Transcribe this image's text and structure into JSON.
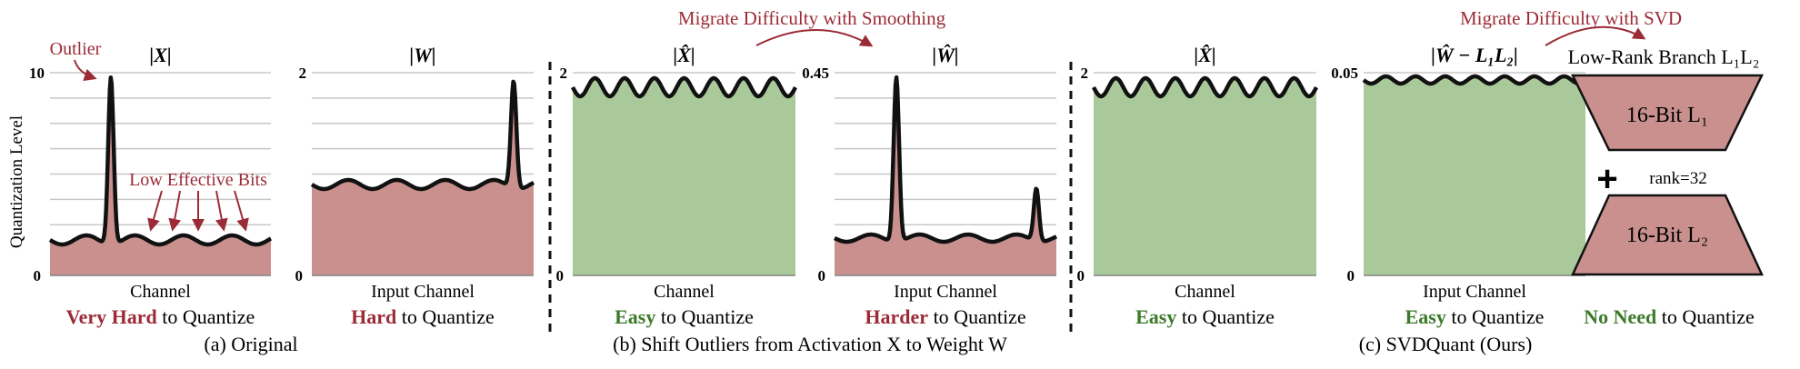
{
  "colors": {
    "red": "#c9908e",
    "green": "#a9c99b",
    "dark_red": "#9b2b36",
    "dark_green": "#3d7a2a",
    "curve": "#111111",
    "grid": "#c8c8c8"
  },
  "y_axis_label": "Quantization Level",
  "annotations": {
    "outlier": "Outlier",
    "low_bits": "Low Effective Bits",
    "migrate_smooth": "Migrate Difficulty with Smoothing",
    "migrate_svd": "Migrate Difficulty with SVD",
    "rank": "rank=32",
    "plus": "+"
  },
  "panels": [
    {
      "title": "|X|",
      "ymax": "10",
      "ymin": "0",
      "xlabel": "Channel",
      "verdict_strong": "Very Hard",
      "verdict_rest": " to Quantize",
      "verdict_color": "red",
      "fill": "red"
    },
    {
      "title": "|W|",
      "ymax": "2",
      "ymin": "0",
      "xlabel": "Input Channel",
      "verdict_strong": "Hard",
      "verdict_rest": " to Quantize",
      "verdict_color": "red",
      "fill": "red"
    },
    {
      "title": "|X̂|",
      "ymax": "2",
      "ymin": "0",
      "xlabel": "Channel",
      "verdict_strong": "Easy",
      "verdict_rest": " to Quantize",
      "verdict_color": "green",
      "fill": "green"
    },
    {
      "title": "|Ŵ|",
      "ymax": "0.45",
      "ymin": "0",
      "xlabel": "Input Channel",
      "verdict_strong": "Harder",
      "verdict_rest": " to Quantize",
      "verdict_color": "red",
      "fill": "red"
    },
    {
      "title": "|X̂|",
      "ymax": "2",
      "ymin": "0",
      "xlabel": "Channel",
      "verdict_strong": "Easy",
      "verdict_rest": " to Quantize",
      "verdict_color": "green",
      "fill": "green"
    },
    {
      "title": "|Ŵ − L₁L₂|",
      "ymax": "0.05",
      "ymin": "0",
      "xlabel": "Input Channel",
      "verdict_strong": "Easy",
      "verdict_rest": " to Quantize",
      "verdict_color": "green",
      "fill": "green"
    }
  ],
  "low_rank": {
    "title": "Low-Rank Branch L₁L₂",
    "l1_label": "16-Bit L₁",
    "l2_label": "16-Bit L₂",
    "verdict_strong": "No Need",
    "verdict_rest": " to Quantize"
  },
  "captions": [
    "(a) Original",
    "(b) Shift Outliers from Activation X to Weight W",
    "(c) SVDQuant (Ours)"
  ]
}
